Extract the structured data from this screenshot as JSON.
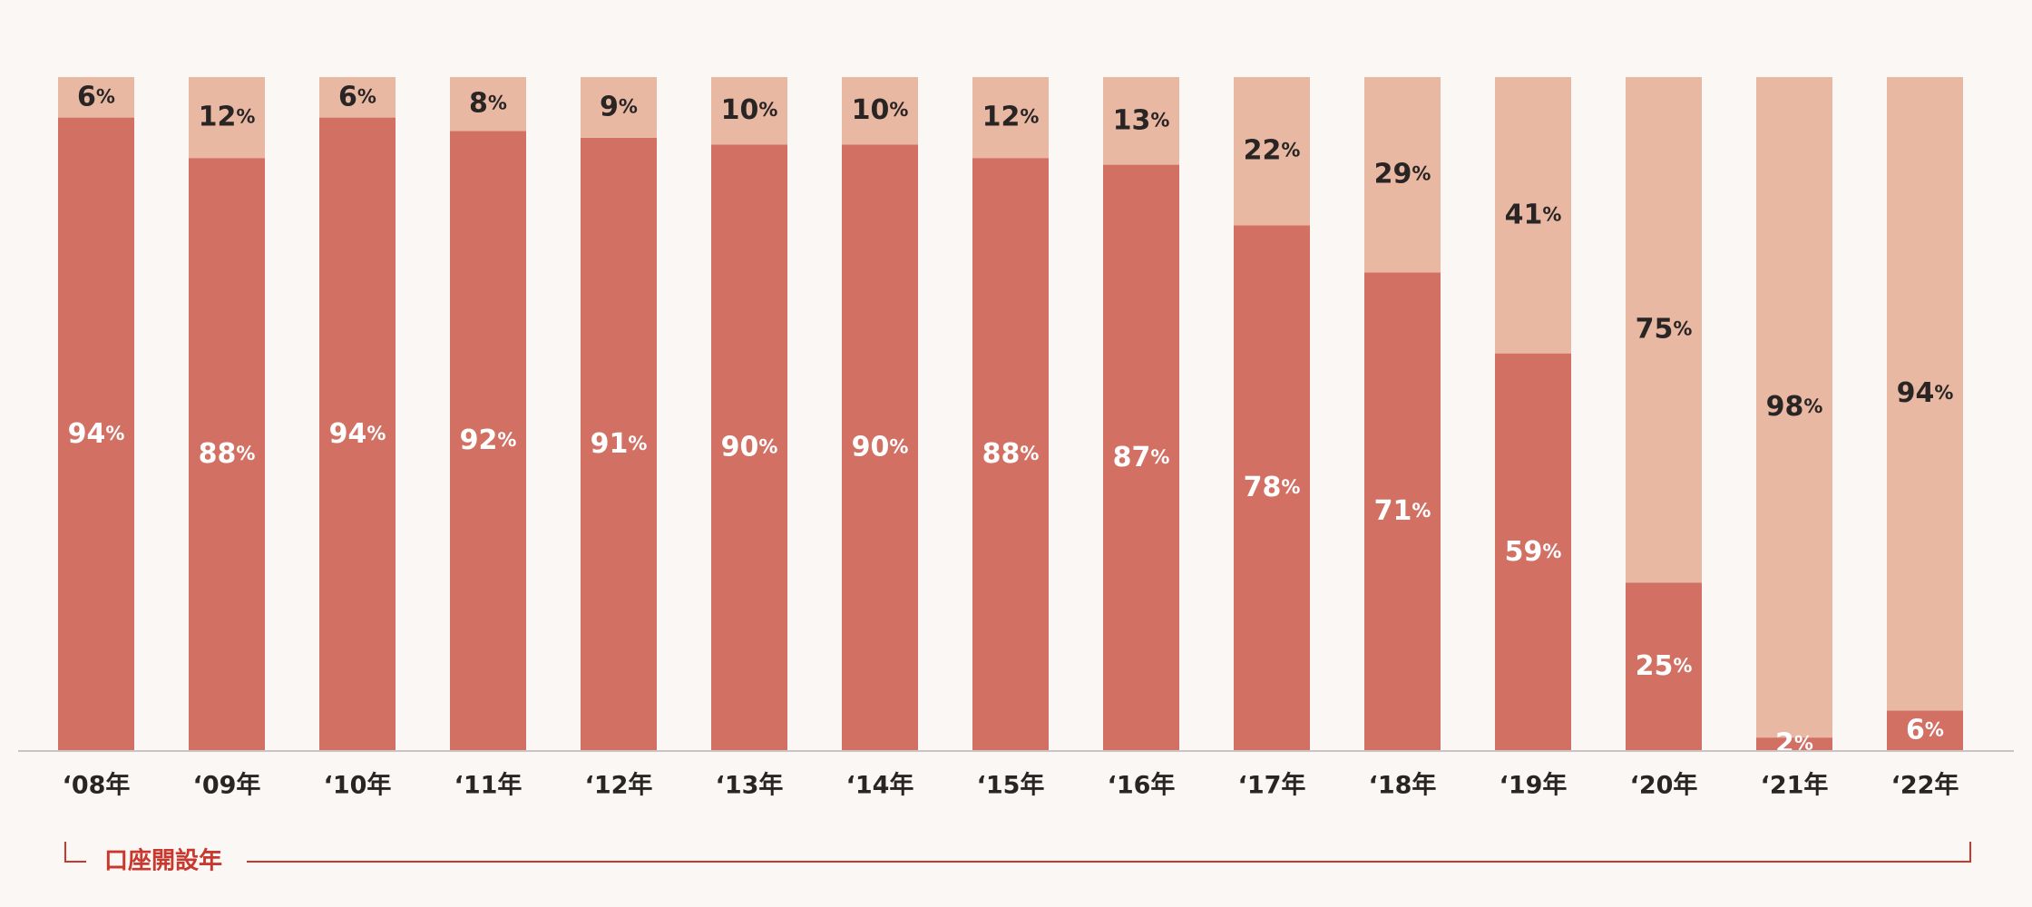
{
  "chart_data": {
    "type": "bar",
    "stacked": true,
    "categories": [
      "‘08年",
      "‘09年",
      "‘10年",
      "‘11年",
      "‘12年",
      "‘13年",
      "‘14年",
      "‘15年",
      "‘16年",
      "‘17年",
      "‘18年",
      "‘19年",
      "‘20年",
      "‘21年",
      "‘22年"
    ],
    "series": [
      {
        "color": "#d27064",
        "label_color": "#ffffff",
        "values": [
          94,
          88,
          94,
          92,
          91,
          90,
          90,
          88,
          87,
          78,
          71,
          59,
          25,
          2,
          6
        ]
      },
      {
        "color": "#e8b8a2",
        "label_color": "#2a2525",
        "values": [
          6,
          12,
          6,
          8,
          9,
          10,
          10,
          12,
          13,
          22,
          29,
          41,
          75,
          98,
          94
        ]
      }
    ],
    "value_suffix": "%",
    "ylim": [
      0,
      100
    ],
    "xlabel": "口座開設年",
    "xlabel_color": "#c8382e",
    "grid": false,
    "legend": "none"
  }
}
